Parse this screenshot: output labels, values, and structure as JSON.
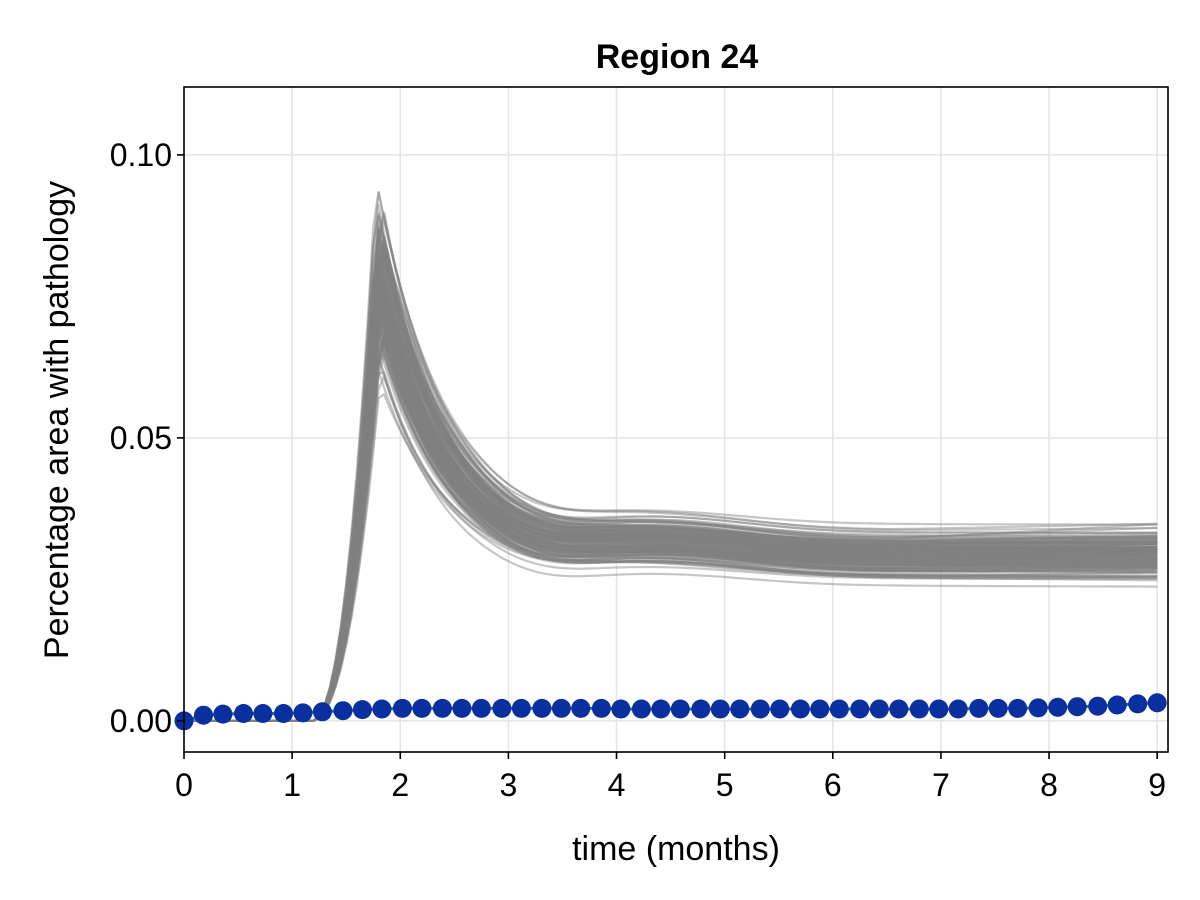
{
  "chart_data": {
    "type": "line",
    "title": "Region 24",
    "xlabel": "time (months)",
    "ylabel": "Percentage area with pathology",
    "xlim": [
      0,
      9.1
    ],
    "ylim": [
      -0.0055,
      0.112
    ],
    "x_ticks": [
      0,
      1,
      2,
      3,
      4,
      5,
      6,
      7,
      8,
      9
    ],
    "x_tick_labels": [
      "0",
      "1",
      "2",
      "3",
      "4",
      "5",
      "6",
      "7",
      "8",
      "9"
    ],
    "y_ticks": [
      0.0,
      0.05,
      0.1
    ],
    "y_tick_labels": [
      "0.00",
      "0.05",
      "0.10"
    ],
    "grid": true,
    "legend": "none",
    "ensemble": {
      "description": "posterior predictive simulations",
      "color": "#808080",
      "opacity": 0.45,
      "line_count": 150,
      "onset_x": 1.18,
      "peak_x": 1.8,
      "peak_range": [
        0.052,
        0.107
      ],
      "trough_x": 3.3,
      "second_hump_x": 4.5,
      "median_trajectory": {
        "x": [
          0,
          1.18,
          1.4,
          1.6,
          1.8,
          2.0,
          2.2,
          2.5,
          2.8,
          3.0,
          3.3,
          4.0,
          4.5,
          5.0,
          6.0,
          7.0,
          8.0,
          9.0
        ],
        "y": [
          0.0,
          0.0,
          0.015,
          0.058,
          0.078,
          0.068,
          0.052,
          0.038,
          0.031,
          0.029,
          0.028,
          0.0295,
          0.03,
          0.0295,
          0.0285,
          0.0285,
          0.029,
          0.03
        ]
      }
    },
    "series": [
      {
        "type": "scatter",
        "color": "#0a2f9e",
        "line_color": "#1e6fb0",
        "x": [
          0,
          0.18,
          0.36,
          0.55,
          0.73,
          0.92,
          1.1,
          1.28,
          1.47,
          1.65,
          1.83,
          2.02,
          2.2,
          2.39,
          2.57,
          2.75,
          2.94,
          3.12,
          3.31,
          3.49,
          3.67,
          3.86,
          4.04,
          4.23,
          4.41,
          4.59,
          4.78,
          4.96,
          5.14,
          5.33,
          5.51,
          5.7,
          5.88,
          6.06,
          6.25,
          6.43,
          6.61,
          6.8,
          6.98,
          7.16,
          7.35,
          7.53,
          7.71,
          7.9,
          8.08,
          8.26,
          8.45,
          8.63,
          8.82,
          9.0
        ],
        "y": [
          0.0,
          0.001,
          0.0012,
          0.0013,
          0.0013,
          0.0013,
          0.0014,
          0.0016,
          0.0018,
          0.002,
          0.0021,
          0.0022,
          0.0022,
          0.0022,
          0.0022,
          0.0022,
          0.0022,
          0.0022,
          0.0022,
          0.0022,
          0.0022,
          0.0022,
          0.0021,
          0.0021,
          0.0021,
          0.0021,
          0.0021,
          0.0021,
          0.0021,
          0.0021,
          0.0021,
          0.0021,
          0.0021,
          0.0021,
          0.0021,
          0.0021,
          0.0021,
          0.0021,
          0.0021,
          0.0021,
          0.0022,
          0.0022,
          0.0022,
          0.0023,
          0.0024,
          0.0025,
          0.0026,
          0.0028,
          0.003,
          0.0032
        ]
      }
    ]
  }
}
